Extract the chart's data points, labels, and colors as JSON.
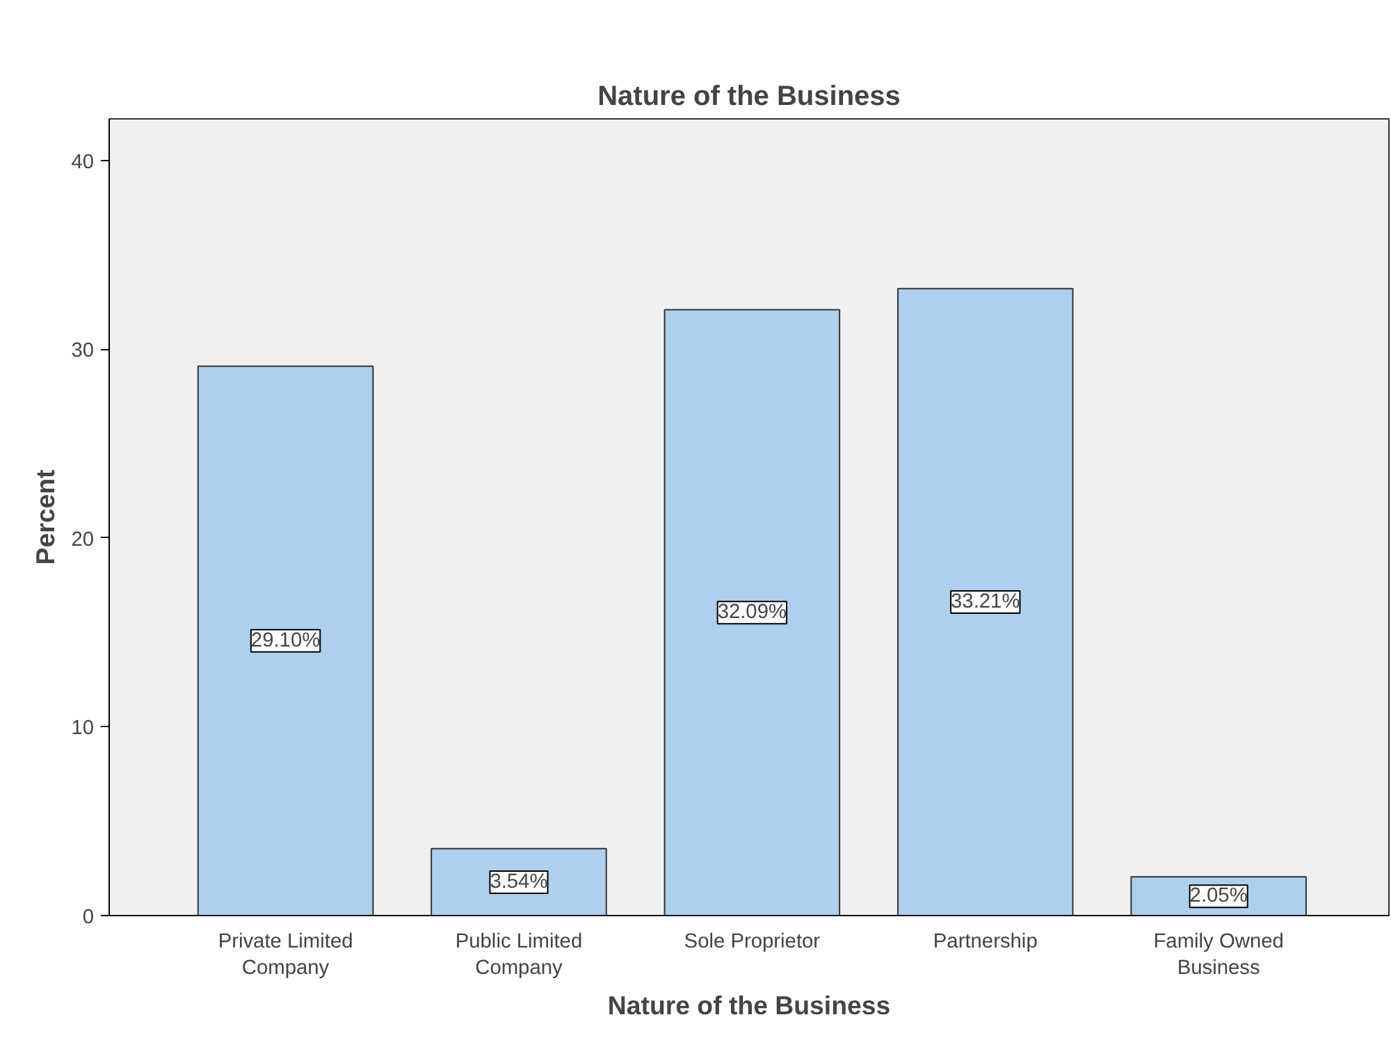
{
  "chart_data": {
    "type": "bar",
    "title": "Nature of the Business",
    "xlabel": "Nature of the Business",
    "ylabel": "Percent",
    "categories": [
      "Private Limited Company",
      "Public Limited Company",
      "Sole Proprietor",
      "Partnership",
      "Family Owned Business"
    ],
    "values": [
      29.1,
      3.54,
      32.09,
      33.21,
      2.05
    ],
    "value_labels": [
      "29.10%",
      "3.54%",
      "32.09%",
      "33.21%",
      "2.05%"
    ],
    "color": "#aed0ee",
    "ylim": [
      0,
      42.2
    ],
    "yticks": [
      0,
      10,
      20,
      30,
      40
    ],
    "grid": false
  }
}
